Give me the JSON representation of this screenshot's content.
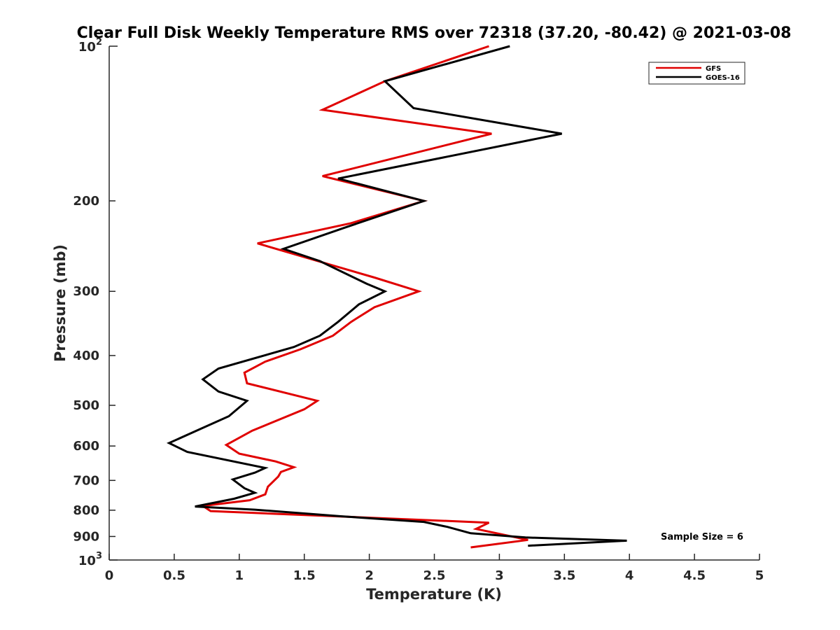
{
  "chart_data": {
    "type": "line",
    "title": "Clear Full Disk Weekly Temperature RMS over 72318 (37.20, -80.42) @ 2021-03-08",
    "xlabel": "Temperature (K)",
    "ylabel": "Pressure (mb)",
    "xlim": [
      0,
      5
    ],
    "ylim": [
      100,
      1000
    ],
    "yscale": "log",
    "yreversed": true,
    "grid": false,
    "legend_position": "top-right",
    "x_ticks": [
      "0",
      "0.5",
      "1",
      "1.5",
      "2",
      "2.5",
      "3",
      "3.5",
      "4",
      "4.5",
      "5"
    ],
    "y_ticks": [
      {
        "value": 200,
        "label": "200"
      },
      {
        "value": 300,
        "label": "300"
      },
      {
        "value": 400,
        "label": "400"
      },
      {
        "value": 500,
        "label": "500"
      },
      {
        "value": 600,
        "label": "600"
      },
      {
        "value": 700,
        "label": "700"
      },
      {
        "value": 800,
        "label": "800"
      },
      {
        "value": 900,
        "label": "900"
      }
    ],
    "y_ticks_power": [
      {
        "value": 100,
        "base": "10",
        "exp": "2"
      },
      {
        "value": 1000,
        "base": "10",
        "exp": "3"
      }
    ],
    "annotation": "Sample Size = 6",
    "series": [
      {
        "name": "GFS",
        "color": "#e00000",
        "points": [
          {
            "x": 2.92,
            "y": 100
          },
          {
            "x": 2.12,
            "y": 117
          },
          {
            "x": 1.64,
            "y": 133
          },
          {
            "x": 2.94,
            "y": 148
          },
          {
            "x": 1.64,
            "y": 179
          },
          {
            "x": 2.42,
            "y": 200
          },
          {
            "x": 1.86,
            "y": 221
          },
          {
            "x": 1.14,
            "y": 242
          },
          {
            "x": 1.74,
            "y": 268
          },
          {
            "x": 2.04,
            "y": 282
          },
          {
            "x": 2.38,
            "y": 300
          },
          {
            "x": 2.04,
            "y": 322
          },
          {
            "x": 1.86,
            "y": 344
          },
          {
            "x": 1.72,
            "y": 366
          },
          {
            "x": 1.47,
            "y": 389
          },
          {
            "x": 1.2,
            "y": 411
          },
          {
            "x": 1.04,
            "y": 432
          },
          {
            "x": 1.06,
            "y": 453
          },
          {
            "x": 1.6,
            "y": 490
          },
          {
            "x": 1.5,
            "y": 509
          },
          {
            "x": 1.1,
            "y": 560
          },
          {
            "x": 0.9,
            "y": 597
          },
          {
            "x": 1.0,
            "y": 621
          },
          {
            "x": 1.28,
            "y": 643
          },
          {
            "x": 1.42,
            "y": 660
          },
          {
            "x": 1.32,
            "y": 674
          },
          {
            "x": 1.3,
            "y": 688
          },
          {
            "x": 1.22,
            "y": 720
          },
          {
            "x": 1.2,
            "y": 745
          },
          {
            "x": 1.08,
            "y": 765
          },
          {
            "x": 0.72,
            "y": 785
          },
          {
            "x": 0.78,
            "y": 803
          },
          {
            "x": 2.92,
            "y": 846
          },
          {
            "x": 2.82,
            "y": 870
          },
          {
            "x": 3.22,
            "y": 914
          },
          {
            "x": 2.78,
            "y": 945
          }
        ]
      },
      {
        "name": "GOES-16",
        "color": "#000000",
        "points": [
          {
            "x": 3.08,
            "y": 100
          },
          {
            "x": 2.12,
            "y": 117
          },
          {
            "x": 2.34,
            "y": 132
          },
          {
            "x": 3.48,
            "y": 148
          },
          {
            "x": 1.76,
            "y": 181
          },
          {
            "x": 2.42,
            "y": 200
          },
          {
            "x": 1.8,
            "y": 226
          },
          {
            "x": 1.34,
            "y": 248
          },
          {
            "x": 1.62,
            "y": 262
          },
          {
            "x": 1.98,
            "y": 290
          },
          {
            "x": 2.12,
            "y": 300
          },
          {
            "x": 1.92,
            "y": 318
          },
          {
            "x": 1.76,
            "y": 344
          },
          {
            "x": 1.62,
            "y": 366
          },
          {
            "x": 1.42,
            "y": 385
          },
          {
            "x": 0.84,
            "y": 424
          },
          {
            "x": 0.72,
            "y": 445
          },
          {
            "x": 0.84,
            "y": 470
          },
          {
            "x": 1.06,
            "y": 490
          },
          {
            "x": 0.92,
            "y": 525
          },
          {
            "x": 0.7,
            "y": 556
          },
          {
            "x": 0.46,
            "y": 592
          },
          {
            "x": 0.6,
            "y": 616
          },
          {
            "x": 1.2,
            "y": 662
          },
          {
            "x": 1.12,
            "y": 676
          },
          {
            "x": 0.95,
            "y": 697
          },
          {
            "x": 1.04,
            "y": 725
          },
          {
            "x": 1.12,
            "y": 740
          },
          {
            "x": 0.96,
            "y": 760
          },
          {
            "x": 0.66,
            "y": 787
          },
          {
            "x": 1.12,
            "y": 798
          },
          {
            "x": 1.78,
            "y": 822
          },
          {
            "x": 2.42,
            "y": 843
          },
          {
            "x": 2.6,
            "y": 862
          },
          {
            "x": 2.78,
            "y": 887
          },
          {
            "x": 3.2,
            "y": 904
          },
          {
            "x": 3.98,
            "y": 917
          },
          {
            "x": 3.22,
            "y": 938
          }
        ]
      }
    ]
  }
}
